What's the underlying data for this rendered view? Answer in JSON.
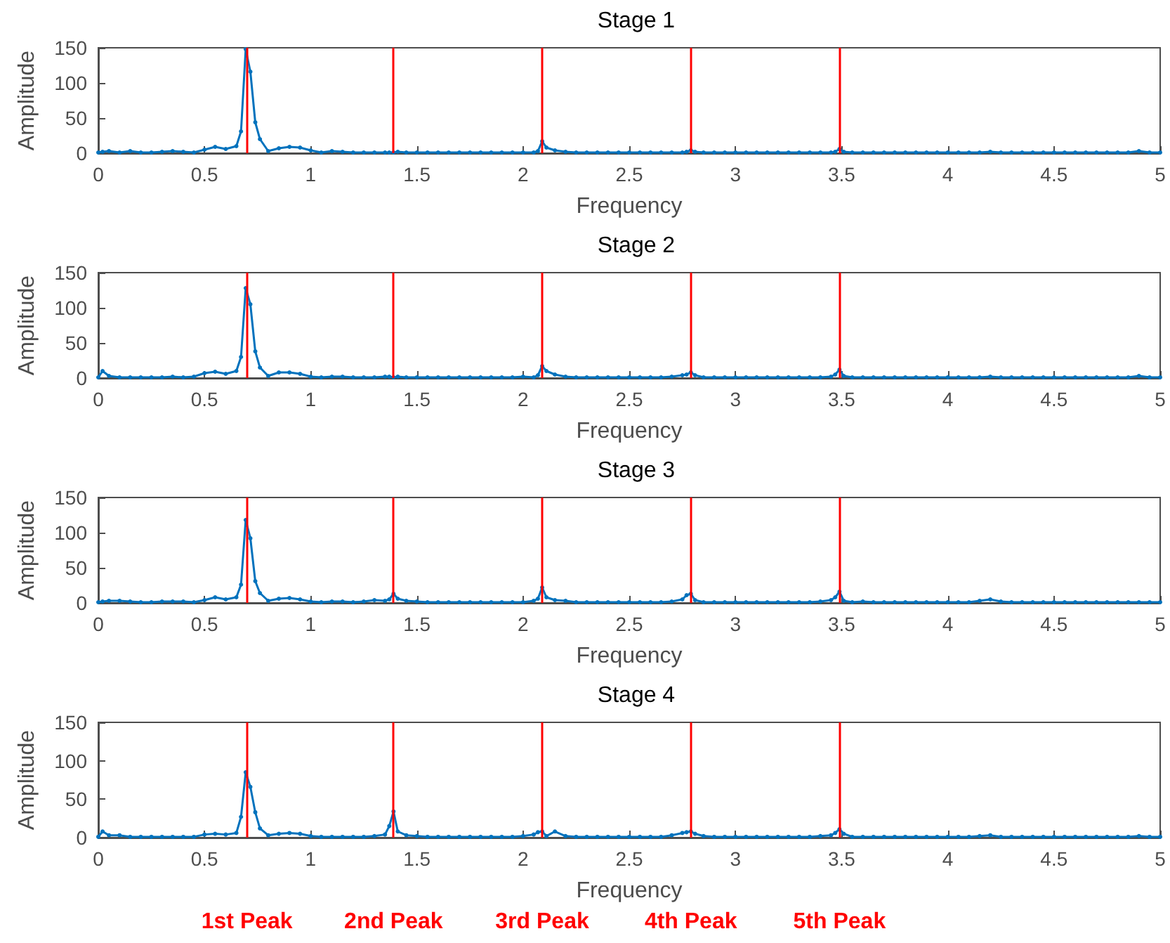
{
  "chart_data": [
    {
      "type": "line",
      "title": "Stage 1",
      "xlabel": "Frequency",
      "ylabel": "Amplitude",
      "xlim": [
        0,
        5
      ],
      "xticks": [
        0,
        0.5,
        1,
        1.5,
        2,
        2.5,
        3,
        3.5,
        4,
        4.5,
        5
      ],
      "ylim": [
        0,
        150
      ],
      "yticks": [
        0,
        50,
        100,
        150
      ],
      "grid": false,
      "marker": "circle",
      "line_style": "solid",
      "x": [
        0,
        0.02,
        0.05,
        0.1,
        0.15,
        0.2,
        0.25,
        0.3,
        0.35,
        0.4,
        0.45,
        0.5,
        0.55,
        0.6,
        0.65,
        0.672,
        0.694,
        0.716,
        0.739,
        0.761,
        0.8,
        0.85,
        0.9,
        0.95,
        1,
        1.05,
        1.1,
        1.15,
        1.2,
        1.25,
        1.3,
        1.35,
        1.37,
        1.39,
        1.41,
        1.45,
        1.5,
        1.55,
        1.6,
        1.65,
        1.7,
        1.75,
        1.8,
        1.85,
        1.9,
        1.95,
        2,
        2.05,
        2.07,
        2.09,
        2.11,
        2.15,
        2.2,
        2.25,
        2.3,
        2.35,
        2.4,
        2.45,
        2.5,
        2.55,
        2.6,
        2.65,
        2.7,
        2.75,
        2.77,
        2.79,
        2.81,
        2.85,
        2.9,
        2.95,
        3,
        3.05,
        3.1,
        3.15,
        3.2,
        3.25,
        3.3,
        3.35,
        3.4,
        3.45,
        3.47,
        3.49,
        3.51,
        3.55,
        3.6,
        3.65,
        3.7,
        3.75,
        3.8,
        3.85,
        3.9,
        3.95,
        4,
        4.05,
        4.1,
        4.15,
        4.2,
        4.25,
        4.3,
        4.35,
        4.4,
        4.45,
        4.5,
        4.55,
        4.6,
        4.65,
        4.7,
        4.75,
        4.8,
        4.85,
        4.9,
        4.95,
        5
      ],
      "series": [
        {
          "color": "#0072bd",
          "values": [
            1,
            2,
            3,
            1,
            3,
            1,
            1,
            2,
            3,
            2,
            1,
            5,
            9,
            6,
            10,
            31,
            148,
            116,
            44,
            20,
            3,
            7,
            9,
            8,
            4,
            1,
            3,
            2,
            1,
            1,
            1,
            1,
            1,
            1,
            2,
            1,
            1,
            1,
            1,
            1,
            1,
            1,
            1,
            1,
            1,
            1,
            1,
            1,
            3,
            17,
            8,
            4,
            2,
            1,
            1,
            1,
            1,
            1,
            1,
            1,
            1,
            1,
            1,
            1,
            2,
            4,
            2,
            1,
            1,
            1,
            1,
            1,
            1,
            1,
            1,
            1,
            1,
            1,
            1,
            1,
            2,
            6,
            2,
            1,
            1,
            1,
            1,
            1,
            1,
            1,
            1,
            1,
            1,
            1,
            1,
            1,
            2,
            1,
            1,
            1,
            1,
            1,
            1,
            1,
            1,
            1,
            1,
            1,
            1,
            1,
            3,
            1,
            1
          ]
        }
      ],
      "ref_lines": [
        {
          "axis": "x",
          "value": 0.7,
          "color": "#ff0000"
        },
        {
          "axis": "x",
          "value": 1.39,
          "color": "#ff0000"
        },
        {
          "axis": "x",
          "value": 2.09,
          "color": "#ff0000"
        },
        {
          "axis": "x",
          "value": 2.79,
          "color": "#ff0000"
        },
        {
          "axis": "x",
          "value": 3.49,
          "color": "#ff0000"
        }
      ]
    },
    {
      "type": "line",
      "title": "Stage 2",
      "xlabel": "Frequency",
      "ylabel": "Amplitude",
      "xlim": [
        0,
        5
      ],
      "xticks": [
        0,
        0.5,
        1,
        1.5,
        2,
        2.5,
        3,
        3.5,
        4,
        4.5,
        5
      ],
      "ylim": [
        0,
        150
      ],
      "yticks": [
        0,
        50,
        100,
        150
      ],
      "grid": false,
      "marker": "circle",
      "line_style": "solid",
      "x": [
        0,
        0.02,
        0.05,
        0.1,
        0.15,
        0.2,
        0.25,
        0.3,
        0.35,
        0.4,
        0.45,
        0.5,
        0.55,
        0.6,
        0.65,
        0.672,
        0.694,
        0.716,
        0.739,
        0.761,
        0.8,
        0.85,
        0.9,
        0.95,
        1,
        1.05,
        1.1,
        1.15,
        1.2,
        1.25,
        1.3,
        1.35,
        1.37,
        1.39,
        1.41,
        1.45,
        1.5,
        1.55,
        1.6,
        1.65,
        1.7,
        1.75,
        1.8,
        1.85,
        1.9,
        1.95,
        2,
        2.05,
        2.07,
        2.09,
        2.11,
        2.15,
        2.2,
        2.25,
        2.3,
        2.35,
        2.4,
        2.45,
        2.5,
        2.55,
        2.6,
        2.65,
        2.7,
        2.75,
        2.77,
        2.79,
        2.81,
        2.85,
        2.9,
        2.95,
        3,
        3.05,
        3.1,
        3.15,
        3.2,
        3.25,
        3.3,
        3.35,
        3.4,
        3.45,
        3.47,
        3.49,
        3.51,
        3.55,
        3.6,
        3.65,
        3.7,
        3.75,
        3.8,
        3.85,
        3.9,
        3.95,
        4,
        4.05,
        4.1,
        4.15,
        4.2,
        4.25,
        4.3,
        4.35,
        4.4,
        4.45,
        4.5,
        4.55,
        4.6,
        4.65,
        4.7,
        4.75,
        4.8,
        4.85,
        4.9,
        4.95,
        5
      ],
      "series": [
        {
          "color": "#0072bd",
          "values": [
            1,
            10,
            3,
            1,
            1,
            1,
            1,
            1,
            2,
            1,
            2,
            7,
            9,
            6,
            10,
            30,
            128,
            105,
            38,
            15,
            3,
            8,
            8,
            6,
            2,
            1,
            2,
            2,
            1,
            1,
            1,
            2,
            2,
            1,
            2,
            1,
            1,
            1,
            1,
            1,
            1,
            1,
            1,
            1,
            1,
            1,
            2,
            1,
            4,
            17,
            10,
            5,
            2,
            1,
            1,
            1,
            1,
            1,
            1,
            1,
            1,
            1,
            2,
            4,
            5,
            8,
            4,
            1,
            1,
            1,
            1,
            1,
            1,
            1,
            1,
            1,
            1,
            1,
            1,
            2,
            5,
            12,
            3,
            1,
            1,
            1,
            1,
            1,
            1,
            1,
            1,
            1,
            1,
            1,
            1,
            1,
            2,
            1,
            1,
            1,
            1,
            1,
            1,
            1,
            1,
            1,
            1,
            1,
            1,
            1,
            3,
            1,
            1
          ]
        }
      ],
      "ref_lines": [
        {
          "axis": "x",
          "value": 0.7,
          "color": "#ff0000"
        },
        {
          "axis": "x",
          "value": 1.39,
          "color": "#ff0000"
        },
        {
          "axis": "x",
          "value": 2.09,
          "color": "#ff0000"
        },
        {
          "axis": "x",
          "value": 2.79,
          "color": "#ff0000"
        },
        {
          "axis": "x",
          "value": 3.49,
          "color": "#ff0000"
        }
      ]
    },
    {
      "type": "line",
      "title": "Stage 3",
      "xlabel": "Frequency",
      "ylabel": "Amplitude",
      "xlim": [
        0,
        5
      ],
      "xticks": [
        0,
        0.5,
        1,
        1.5,
        2,
        2.5,
        3,
        3.5,
        4,
        4.5,
        5
      ],
      "ylim": [
        0,
        150
      ],
      "yticks": [
        0,
        50,
        100,
        150
      ],
      "grid": false,
      "marker": "circle",
      "line_style": "solid",
      "x": [
        0,
        0.02,
        0.05,
        0.1,
        0.15,
        0.2,
        0.25,
        0.3,
        0.35,
        0.4,
        0.45,
        0.5,
        0.55,
        0.6,
        0.65,
        0.672,
        0.694,
        0.716,
        0.739,
        0.761,
        0.8,
        0.85,
        0.9,
        0.95,
        1,
        1.05,
        1.1,
        1.15,
        1.2,
        1.25,
        1.3,
        1.35,
        1.37,
        1.39,
        1.41,
        1.45,
        1.5,
        1.55,
        1.6,
        1.65,
        1.7,
        1.75,
        1.8,
        1.85,
        1.9,
        1.95,
        2,
        2.05,
        2.07,
        2.09,
        2.11,
        2.15,
        2.2,
        2.25,
        2.3,
        2.35,
        2.4,
        2.45,
        2.5,
        2.55,
        2.6,
        2.65,
        2.7,
        2.75,
        2.77,
        2.79,
        2.81,
        2.85,
        2.9,
        2.95,
        3,
        3.05,
        3.1,
        3.15,
        3.2,
        3.25,
        3.3,
        3.35,
        3.4,
        3.45,
        3.47,
        3.49,
        3.51,
        3.55,
        3.6,
        3.65,
        3.7,
        3.75,
        3.8,
        3.85,
        3.9,
        3.95,
        4,
        4.05,
        4.1,
        4.15,
        4.2,
        4.25,
        4.3,
        4.35,
        4.4,
        4.45,
        4.5,
        4.55,
        4.6,
        4.65,
        4.7,
        4.75,
        4.8,
        4.85,
        4.9,
        4.95,
        5
      ],
      "series": [
        {
          "color": "#0072bd",
          "values": [
            1,
            2,
            3,
            3,
            2,
            1,
            1,
            2,
            2,
            2,
            1,
            4,
            8,
            5,
            8,
            26,
            118,
            92,
            31,
            14,
            3,
            6,
            7,
            5,
            2,
            1,
            2,
            2,
            1,
            2,
            4,
            3,
            5,
            13,
            6,
            3,
            2,
            1,
            1,
            1,
            1,
            1,
            1,
            1,
            1,
            1,
            1,
            3,
            6,
            22,
            8,
            4,
            3,
            1,
            1,
            1,
            1,
            1,
            1,
            1,
            1,
            1,
            2,
            5,
            11,
            13,
            4,
            1,
            1,
            1,
            1,
            1,
            1,
            1,
            1,
            1,
            1,
            1,
            2,
            4,
            8,
            16,
            3,
            1,
            2,
            1,
            1,
            1,
            1,
            1,
            1,
            1,
            1,
            1,
            1,
            3,
            5,
            2,
            1,
            1,
            1,
            1,
            1,
            1,
            1,
            1,
            1,
            1,
            1,
            1,
            1,
            1,
            1
          ]
        }
      ],
      "ref_lines": [
        {
          "axis": "x",
          "value": 0.7,
          "color": "#ff0000"
        },
        {
          "axis": "x",
          "value": 1.39,
          "color": "#ff0000"
        },
        {
          "axis": "x",
          "value": 2.09,
          "color": "#ff0000"
        },
        {
          "axis": "x",
          "value": 2.79,
          "color": "#ff0000"
        },
        {
          "axis": "x",
          "value": 3.49,
          "color": "#ff0000"
        }
      ]
    },
    {
      "type": "line",
      "title": "Stage 4",
      "xlabel": "Frequency",
      "ylabel": "Amplitude",
      "xlim": [
        0,
        5
      ],
      "xticks": [
        0,
        0.5,
        1,
        1.5,
        2,
        2.5,
        3,
        3.5,
        4,
        4.5,
        5
      ],
      "ylim": [
        0,
        150
      ],
      "yticks": [
        0,
        50,
        100,
        150
      ],
      "grid": false,
      "marker": "circle",
      "line_style": "solid",
      "x": [
        0,
        0.02,
        0.05,
        0.1,
        0.15,
        0.2,
        0.25,
        0.3,
        0.35,
        0.4,
        0.45,
        0.5,
        0.55,
        0.6,
        0.65,
        0.672,
        0.694,
        0.716,
        0.739,
        0.761,
        0.8,
        0.85,
        0.9,
        0.95,
        1,
        1.05,
        1.1,
        1.15,
        1.2,
        1.25,
        1.3,
        1.35,
        1.37,
        1.39,
        1.41,
        1.45,
        1.5,
        1.55,
        1.6,
        1.65,
        1.7,
        1.75,
        1.8,
        1.85,
        1.9,
        1.95,
        2,
        2.05,
        2.07,
        2.09,
        2.11,
        2.15,
        2.2,
        2.25,
        2.3,
        2.35,
        2.4,
        2.45,
        2.5,
        2.55,
        2.6,
        2.65,
        2.7,
        2.75,
        2.77,
        2.79,
        2.81,
        2.85,
        2.9,
        2.95,
        3,
        3.05,
        3.1,
        3.15,
        3.2,
        3.25,
        3.3,
        3.35,
        3.4,
        3.45,
        3.47,
        3.49,
        3.51,
        3.55,
        3.6,
        3.65,
        3.7,
        3.75,
        3.8,
        3.85,
        3.9,
        3.95,
        4,
        4.05,
        4.1,
        4.15,
        4.2,
        4.25,
        4.3,
        4.35,
        4.4,
        4.45,
        4.5,
        4.55,
        4.6,
        4.65,
        4.7,
        4.75,
        4.8,
        4.85,
        4.9,
        4.95,
        5
      ],
      "series": [
        {
          "color": "#0072bd",
          "values": [
            1,
            8,
            3,
            3,
            1,
            1,
            1,
            1,
            1,
            1,
            1,
            4,
            5,
            4,
            6,
            27,
            85,
            66,
            33,
            12,
            3,
            5,
            6,
            5,
            2,
            1,
            1,
            1,
            1,
            1,
            2,
            4,
            15,
            34,
            8,
            3,
            2,
            1,
            1,
            1,
            1,
            1,
            1,
            1,
            1,
            1,
            2,
            4,
            7,
            8,
            2,
            8,
            2,
            1,
            1,
            1,
            1,
            1,
            1,
            1,
            1,
            1,
            3,
            6,
            7,
            8,
            5,
            2,
            1,
            1,
            1,
            1,
            1,
            1,
            1,
            1,
            1,
            1,
            2,
            3,
            6,
            11,
            5,
            1,
            1,
            1,
            1,
            1,
            1,
            1,
            1,
            1,
            1,
            1,
            1,
            2,
            3,
            1,
            1,
            1,
            1,
            1,
            1,
            1,
            1,
            1,
            1,
            1,
            1,
            1,
            2,
            1,
            1
          ]
        }
      ],
      "ref_lines": [
        {
          "axis": "x",
          "value": 0.7,
          "label": "1st Peak",
          "color": "#ff0000"
        },
        {
          "axis": "x",
          "value": 1.39,
          "label": "2nd Peak",
          "color": "#ff0000"
        },
        {
          "axis": "x",
          "value": 2.09,
          "label": "3rd Peak",
          "color": "#ff0000"
        },
        {
          "axis": "x",
          "value": 2.79,
          "label": "4th Peak",
          "color": "#ff0000"
        },
        {
          "axis": "x",
          "value": 3.49,
          "label": "5th Peak",
          "color": "#ff0000"
        }
      ]
    }
  ]
}
